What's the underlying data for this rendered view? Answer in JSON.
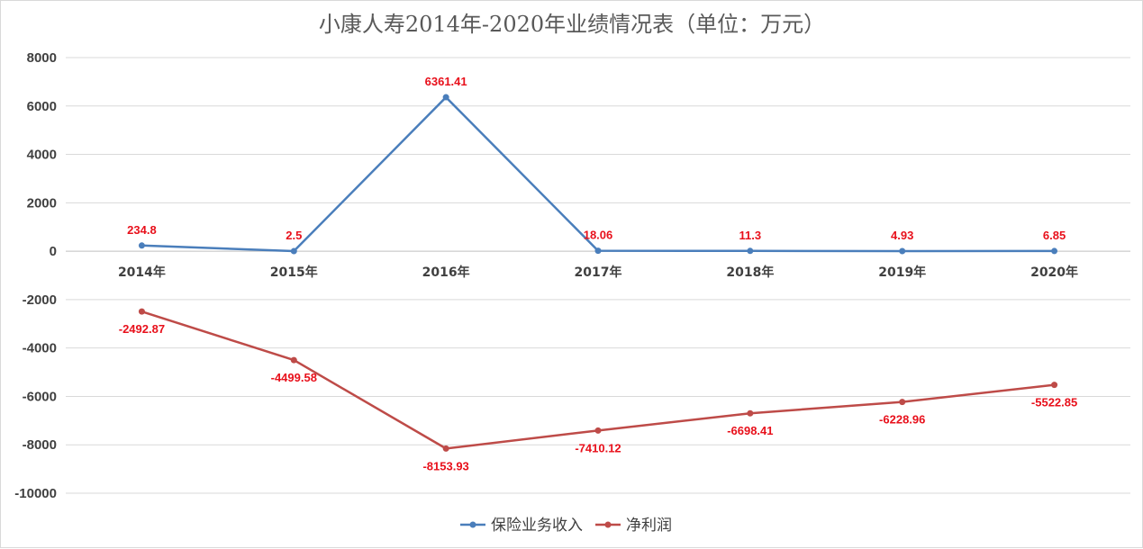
{
  "chart_data": {
    "type": "line",
    "title": "小康人寿2014年-2020年业绩情况表（单位：万元）",
    "categories": [
      "2014年",
      "2015年",
      "2016年",
      "2017年",
      "2018年",
      "2019年",
      "2020年"
    ],
    "series": [
      {
        "name": "保险业务收入",
        "values": [
          234.8,
          2.5,
          6361.41,
          18.06,
          11.3,
          4.93,
          6.85
        ],
        "labels": [
          "234.8",
          "2.5",
          "6361.41",
          "18.06",
          "11.3",
          "4.93",
          "6.85"
        ],
        "color": "#4a7ebb"
      },
      {
        "name": "净利润",
        "values": [
          -2492.87,
          -4499.58,
          -8153.93,
          -7410.12,
          -6698.41,
          -6228.96,
          -5522.85
        ],
        "labels": [
          "-2492.87",
          "-4499.58",
          "-8153.93",
          "-7410.12",
          "-6698.41",
          "-6228.96",
          "-5522.85"
        ],
        "color": "#be4b48"
      }
    ],
    "ylim": [
      -10000,
      8000
    ],
    "yticks": [
      "8000",
      "6000",
      "4000",
      "2000",
      "0",
      "-2000",
      "-4000",
      "-6000",
      "-8000",
      "-10000"
    ],
    "grid": true,
    "legend_position": "bottom",
    "data_label_color": "#e8101b"
  }
}
